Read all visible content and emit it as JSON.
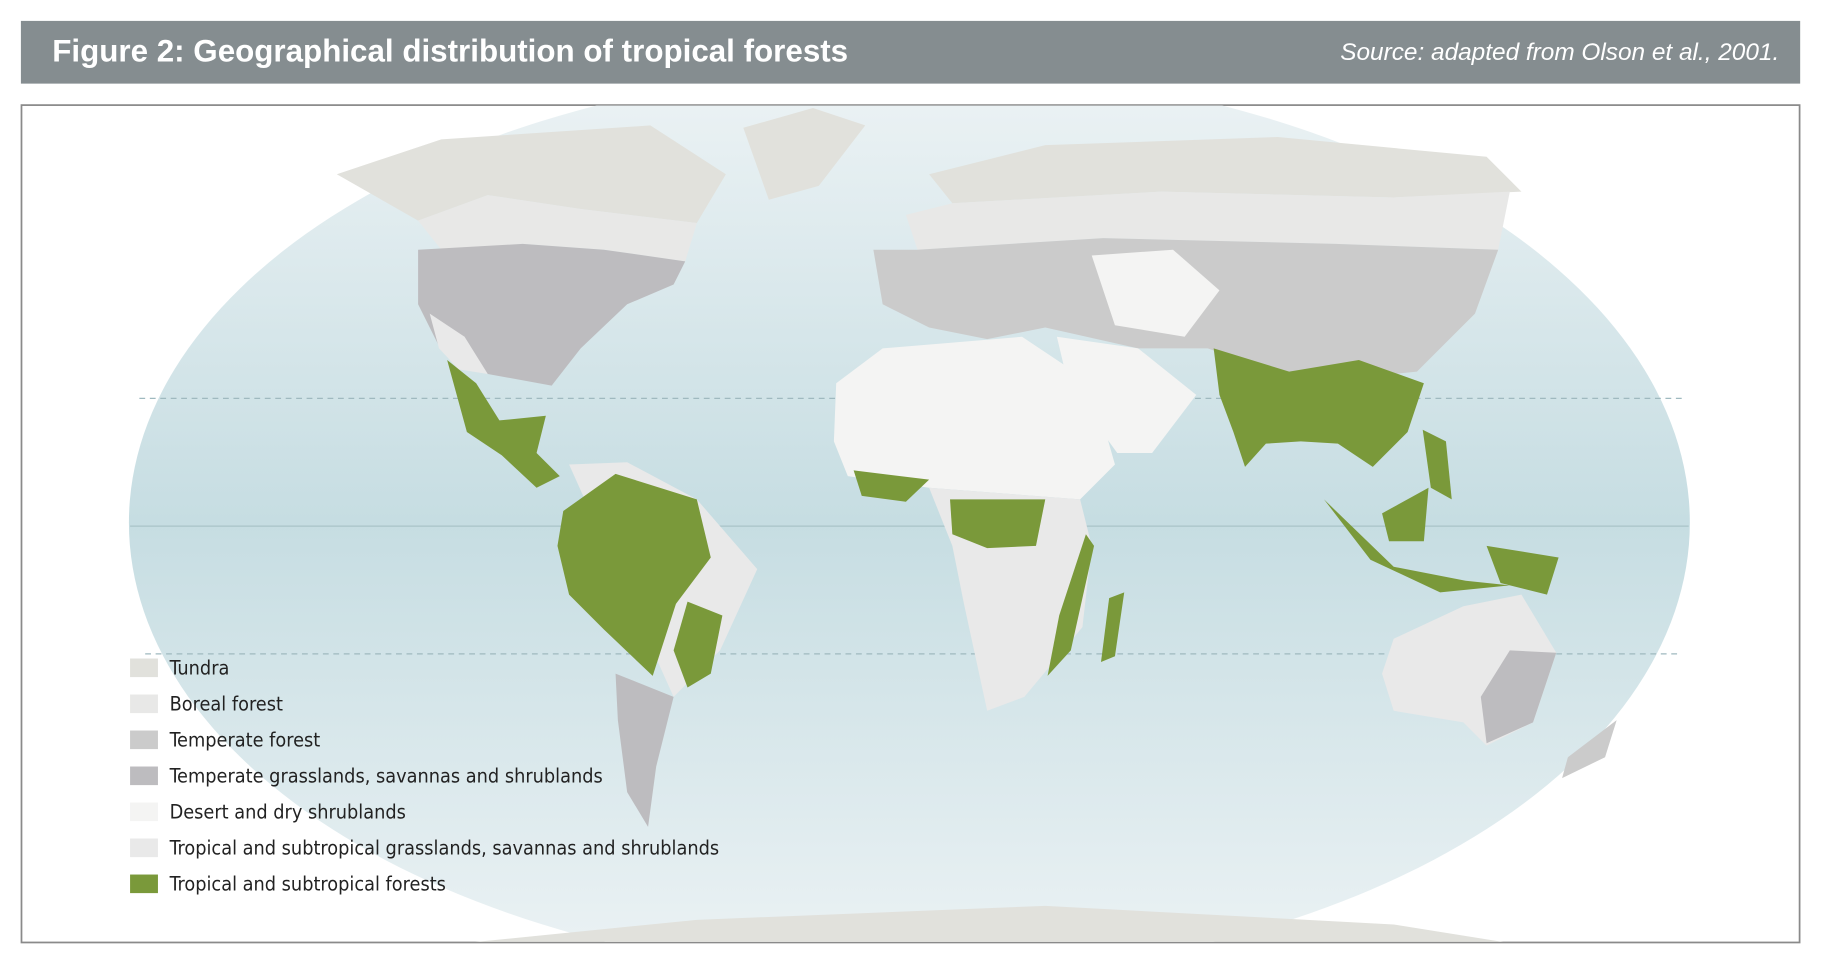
{
  "header": {
    "title": "Figure 2: Geographical distribution of tropical forests",
    "source": "Source: adapted from Olson et al., 2001."
  },
  "legend": {
    "items": [
      {
        "label": "Tundra",
        "color": "#e1e1dc"
      },
      {
        "label": "Boreal forest",
        "color": "#e8e8e7"
      },
      {
        "label": "Temperate forest",
        "color": "#cbcbcb"
      },
      {
        "label": "Temperate grasslands, savannas and shrublands",
        "color": "#bdbcbf"
      },
      {
        "label": "Desert and dry shrublands",
        "color": "#f4f4f3"
      },
      {
        "label": "Tropical and subtropical grasslands, savannas and shrublands",
        "color": "#e9e9e9"
      },
      {
        "label": "Tropical and subtropical forests",
        "color": "#7a993a"
      }
    ]
  }
}
